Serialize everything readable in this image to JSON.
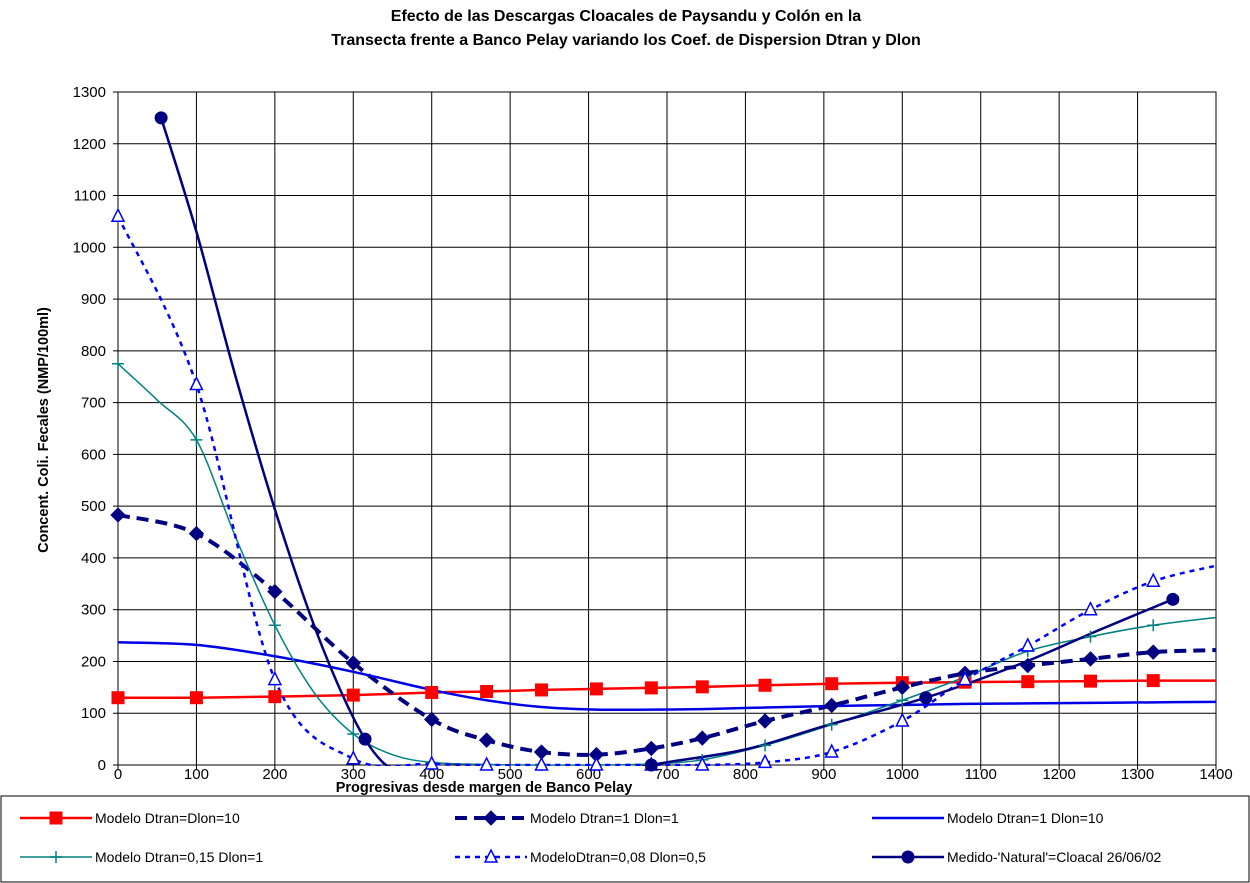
{
  "chart_data": {
    "type": "line",
    "title": "Efecto de las Descargas Cloacales de Paysandu y Colón en la",
    "subtitle": "Transecta frente a Banco Pelay variando los Coef. de Dispersion Dtran y Dlon",
    "xlabel": "Progresivas desde margen de Banco Pelay",
    "ylabel": "Concent. Coli. Fecales  (NMP/100ml)",
    "xlim": [
      0,
      1400
    ],
    "ylim": [
      0,
      1300
    ],
    "xticks": [
      0,
      100,
      200,
      300,
      400,
      500,
      600,
      700,
      800,
      900,
      1000,
      1100,
      1200,
      1300,
      1400
    ],
    "yticks": [
      0,
      100,
      200,
      300,
      400,
      500,
      600,
      700,
      800,
      900,
      1000,
      1100,
      1200,
      1300
    ],
    "grid": true,
    "legend_placement": "bottom",
    "series": [
      {
        "name": "Modelo Dtran=Dlon=10",
        "color": "#ff0000",
        "marker": "square",
        "line": "solid",
        "x": [
          0,
          100,
          200,
          300,
          400,
          470,
          540,
          610,
          680,
          745,
          825,
          910,
          1000,
          1080,
          1160,
          1240,
          1320,
          1400
        ],
        "y": [
          130,
          130,
          132,
          135,
          140,
          142,
          145,
          147,
          149,
          151,
          154,
          157,
          159,
          160,
          161,
          162,
          163,
          163
        ],
        "marker_indices": [
          0,
          1,
          2,
          3,
          4,
          5,
          6,
          7,
          8,
          9,
          10,
          11,
          12,
          13,
          14,
          15,
          16
        ]
      },
      {
        "name": "Modelo Dtran=1 Dlon=1",
        "color": "#000080",
        "marker": "diamond",
        "line": "dashed",
        "x": [
          0,
          100,
          200,
          300,
          400,
          470,
          540,
          610,
          680,
          745,
          825,
          910,
          1000,
          1080,
          1160,
          1240,
          1320,
          1400
        ],
        "y": [
          483,
          447,
          335,
          197,
          88,
          48,
          25,
          20,
          32,
          52,
          85,
          115,
          150,
          177,
          192,
          205,
          218,
          222
        ],
        "marker_indices": [
          0,
          1,
          2,
          3,
          4,
          5,
          6,
          7,
          8,
          9,
          10,
          11,
          12,
          13,
          14,
          15,
          16
        ]
      },
      {
        "name": "Modelo Dtran=1 Dlon=10",
        "color": "#0000e6",
        "marker": "none",
        "line": "solid",
        "x": [
          0,
          100,
          200,
          300,
          400,
          470,
          540,
          610,
          680,
          745,
          825,
          910,
          1000,
          1080,
          1160,
          1240,
          1320,
          1400
        ],
        "y": [
          237,
          232,
          210,
          180,
          145,
          125,
          112,
          107,
          107,
          108,
          111,
          114,
          116,
          118,
          119,
          120,
          121,
          122
        ],
        "marker_indices": []
      },
      {
        "name": "Modelo Dtran=0,15 Dlon=1",
        "color": "#008080",
        "marker": "plus",
        "line": "solid",
        "x": [
          0,
          50,
          100,
          150,
          200,
          250,
          300,
          350,
          400,
          470,
          540,
          610,
          680,
          745,
          825,
          910,
          1000,
          1080,
          1160,
          1240,
          1320,
          1400
        ],
        "y": [
          775,
          705,
          628,
          440,
          270,
          140,
          60,
          20,
          5,
          1,
          0,
          0,
          2,
          10,
          38,
          78,
          125,
          170,
          220,
          248,
          270,
          285
        ],
        "marker_indices": [
          0,
          2,
          4,
          6,
          8,
          9,
          10,
          11,
          12,
          13,
          14,
          15,
          16,
          17,
          18,
          19,
          20
        ]
      },
      {
        "name": "ModeloDtran=0,08 Dlon=0,5",
        "color": "#0000ff",
        "marker": "triangle",
        "line": "dotted",
        "x": [
          0,
          100,
          200,
          300,
          400,
          470,
          540,
          610,
          680,
          745,
          825,
          910,
          1000,
          1080,
          1160,
          1240,
          1320,
          1400
        ],
        "y": [
          1060,
          735,
          165,
          12,
          2,
          0,
          0,
          0,
          0,
          0,
          5,
          25,
          85,
          165,
          230,
          300,
          355,
          385
        ],
        "marker_indices": [
          0,
          1,
          2,
          3,
          4,
          5,
          6,
          7,
          8,
          9,
          10,
          11,
          12,
          13,
          14,
          15,
          16
        ]
      },
      {
        "name": "Medido-'Natural'=Cloacal 26/06/02",
        "color": "#000080",
        "marker": "circle",
        "line": "solid",
        "x": [
          55,
          100,
          150,
          205,
          260,
          315,
          360,
          420,
          500,
          600,
          680,
          800,
          900,
          1030,
          1150,
          1250,
          1345
        ],
        "y": [
          1250,
          1030,
          750,
          470,
          230,
          50,
          -20,
          -55,
          -55,
          -30,
          0,
          30,
          75,
          130,
          195,
          260,
          320
        ],
        "marker_indices": [
          0,
          5,
          10,
          13,
          16
        ]
      }
    ]
  }
}
